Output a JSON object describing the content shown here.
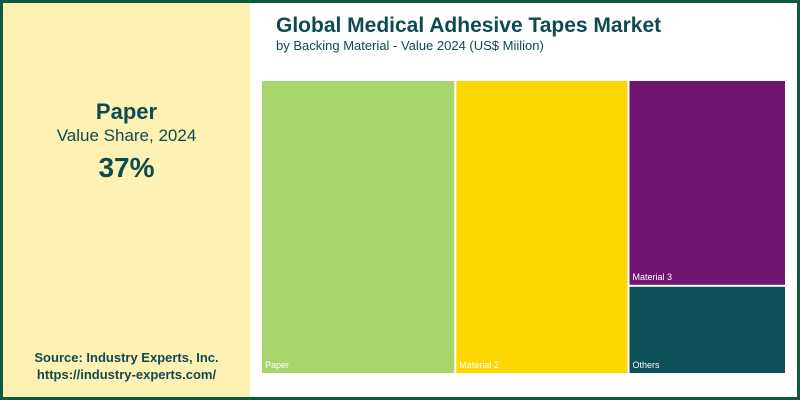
{
  "highlight": {
    "name": "Paper",
    "label": "Value Share, 2024",
    "value": "37%"
  },
  "source": {
    "line1": "Source: Industry Experts, Inc.",
    "line2": "https://industry-experts.com/"
  },
  "chart_data": {
    "type": "treemap",
    "title": "Global Medical Adhesive Tapes Market",
    "subtitle": "by Backing Material - Value 2024 (US$ Miilion)",
    "series": [
      {
        "name": "Paper",
        "share": 37,
        "color": "#a6d66b"
      },
      {
        "name": "Material 2",
        "share": 33,
        "color": "#fdd800"
      },
      {
        "name": "Material 3",
        "share": 21,
        "color": "#701470"
      },
      {
        "name": "Others",
        "share": 9,
        "color": "#0d4f58"
      }
    ]
  },
  "colors": {
    "border": "#0d5a3f",
    "panel": "#fdf1b4",
    "text": "#0f4a52"
  }
}
